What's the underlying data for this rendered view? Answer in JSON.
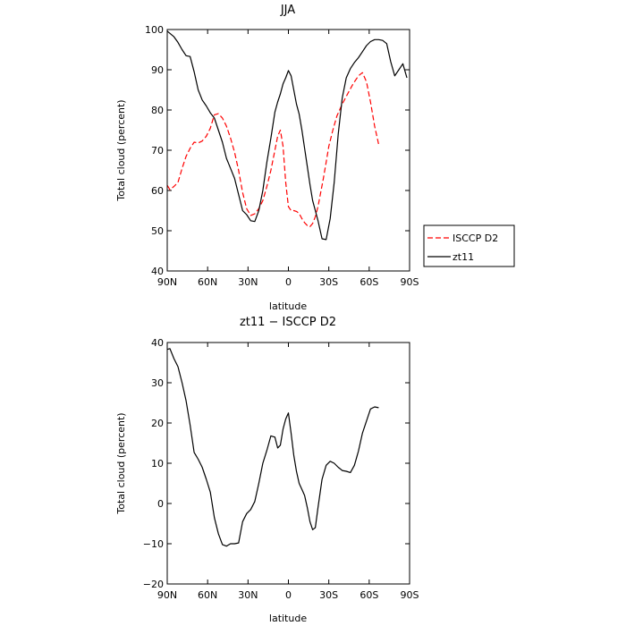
{
  "chart_data": [
    {
      "type": "line",
      "title": "JJA",
      "xlabel": "latitude",
      "ylabel": "Total cloud (percent)",
      "xlim": [
        90,
        -90
      ],
      "ylim": [
        40,
        100
      ],
      "xticks": [
        90,
        60,
        30,
        0,
        -30,
        -60,
        -90
      ],
      "xtick_labels": [
        "90N",
        "60N",
        "30N",
        "0",
        "30S",
        "60S",
        "90S"
      ],
      "yticks": [
        40,
        50,
        60,
        70,
        80,
        90,
        100
      ],
      "ytick_labels": [
        "40",
        "50",
        "60",
        "70",
        "80",
        "90",
        "100"
      ],
      "legend_position": "right, outside plot",
      "series": [
        {
          "name": "ISCCP D2",
          "color": "#ff0000",
          "dashed": true,
          "x": [
            90,
            88,
            85,
            82,
            79,
            76,
            73,
            70,
            67,
            64,
            61,
            58,
            55,
            52,
            49,
            46,
            43,
            40,
            37,
            34,
            31,
            28,
            25,
            22,
            19,
            16,
            13,
            10,
            8,
            6,
            4,
            2,
            0,
            -2,
            -4,
            -6,
            -8,
            -10,
            -12,
            -14,
            -16,
            -18,
            -20,
            -22,
            -24,
            -26,
            -28,
            -30,
            -33,
            -36,
            -40,
            -44,
            -48,
            -52,
            -55,
            -58,
            -61,
            -64,
            -67
          ],
          "y": [
            61.3,
            60.2,
            61,
            62,
            65.5,
            68.5,
            70.5,
            72,
            71.8,
            72.3,
            73.5,
            75.5,
            78.8,
            79.1,
            78,
            76,
            73,
            69.5,
            65,
            59.5,
            55.5,
            53.8,
            54.2,
            55.5,
            57.5,
            61,
            65,
            70,
            73.5,
            75,
            71,
            62,
            56,
            55,
            55,
            54.8,
            54.3,
            53,
            52,
            51.3,
            51,
            51.8,
            53.5,
            56,
            59.5,
            63,
            67,
            71,
            75,
            78.5,
            81.5,
            84,
            86.5,
            88.5,
            89.3,
            87,
            82,
            76,
            71.5
          ]
        },
        {
          "name": "zt11",
          "color": "#000000",
          "dashed": false,
          "x": [
            90,
            85,
            82,
            79,
            76,
            73,
            70,
            67,
            64,
            61,
            58,
            55,
            52,
            49,
            46,
            43,
            40,
            37,
            34,
            31,
            28,
            25,
            22,
            19,
            16,
            13,
            10,
            8,
            6,
            4,
            2,
            0,
            -2,
            -4,
            -6,
            -8,
            -10,
            -12,
            -14,
            -16,
            -18,
            -20,
            -22,
            -25,
            -28,
            -31,
            -34,
            -37,
            -40,
            -43,
            -46,
            -49,
            -52,
            -55,
            -58,
            -61,
            -64,
            -67,
            -70,
            -73,
            -76,
            -79,
            -82,
            -85,
            -88
          ],
          "y": [
            99.6,
            98.2,
            96.8,
            95,
            93.5,
            93.3,
            89.5,
            85,
            82.5,
            81,
            79.3,
            78,
            75,
            72,
            68,
            65.5,
            63,
            59,
            55,
            54,
            52.5,
            52.3,
            55,
            60,
            67,
            73,
            79.5,
            82,
            84,
            86.5,
            88,
            89.8,
            88.5,
            85,
            81.5,
            79,
            75,
            70.5,
            66,
            61.5,
            57.5,
            55,
            52.5,
            48,
            47.8,
            53,
            62,
            74,
            83,
            88,
            90.3,
            91.8,
            93,
            94.5,
            96,
            97,
            97.5,
            97.5,
            97.3,
            96.5,
            92,
            88.5,
            90,
            91.5,
            88
          ]
        }
      ]
    },
    {
      "type": "line",
      "title": "zt11 − ISCCP D2",
      "xlabel": "latitude",
      "ylabel": "Total cloud (percent)",
      "xlim": [
        90,
        -90
      ],
      "ylim": [
        -20,
        40
      ],
      "xticks": [
        90,
        60,
        30,
        0,
        -30,
        -60,
        -90
      ],
      "xtick_labels": [
        "90N",
        "60N",
        "30N",
        "0",
        "30S",
        "60S",
        "90S"
      ],
      "yticks": [
        -20,
        -10,
        0,
        10,
        20,
        30,
        40
      ],
      "ytick_labels": [
        "−20",
        "−10",
        "0",
        "10",
        "20",
        "30",
        "40"
      ],
      "series": [
        {
          "color": "#000000",
          "dashed": false,
          "x": [
            90,
            88,
            85,
            82,
            79,
            76,
            73,
            70,
            67,
            64,
            61,
            58,
            55,
            52,
            49,
            46,
            43,
            40,
            37,
            34,
            31,
            28,
            25,
            22,
            19,
            16,
            13,
            10,
            8,
            6,
            4,
            2,
            0,
            -2,
            -4,
            -6,
            -8,
            -10,
            -12,
            -14,
            -16,
            -18,
            -20,
            -22,
            -25,
            -28,
            -31,
            -34,
            -37,
            -40,
            -43,
            -46,
            -49,
            -52,
            -55,
            -58,
            -61,
            -64,
            -67
          ],
          "y": [
            38.3,
            38.5,
            36,
            34,
            30,
            25.5,
            19.5,
            12.7,
            11,
            9,
            6,
            2.8,
            -3.5,
            -7.5,
            -10.2,
            -10.6,
            -10,
            -10,
            -9.8,
            -4.5,
            -2.5,
            -1.5,
            0.5,
            5,
            10,
            13.2,
            16.8,
            16.5,
            13.8,
            14.5,
            18.5,
            21,
            22.5,
            17.5,
            12,
            8,
            5,
            3.5,
            2,
            -1,
            -4.5,
            -6.5,
            -6,
            -1,
            6,
            9.5,
            10.5,
            10,
            9,
            8.2,
            8,
            7.7,
            9.5,
            13,
            17.5,
            20.5,
            23.5,
            24,
            23.8
          ]
        }
      ]
    }
  ]
}
